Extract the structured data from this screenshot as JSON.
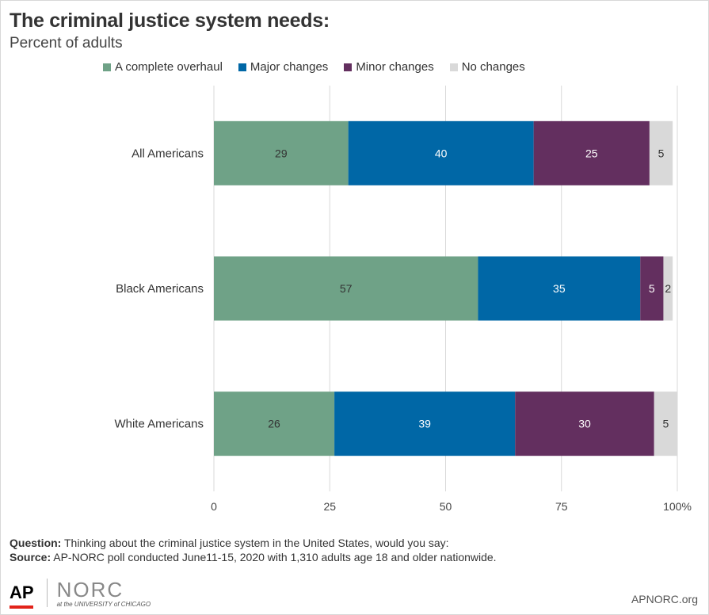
{
  "header": {
    "title": "The criminal justice system needs:",
    "subtitle": "Percent of adults"
  },
  "legend": [
    {
      "label": "A complete overhaul",
      "color": "#6fa287"
    },
    {
      "label": "Major changes",
      "color": "#0067a6"
    },
    {
      "label": "Minor changes",
      "color": "#632f5f"
    },
    {
      "label": "No changes",
      "color": "#d9d9d9"
    }
  ],
  "chart_data": {
    "type": "bar",
    "orientation": "horizontal",
    "stacked": true,
    "categories": [
      "All Americans",
      "Black Americans",
      "White Americans"
    ],
    "series": [
      {
        "name": "A complete overhaul",
        "values": [
          29,
          57,
          26
        ],
        "color": "#6fa287",
        "label_color": "#333333"
      },
      {
        "name": "Major changes",
        "values": [
          40,
          35,
          39
        ],
        "color": "#0067a6",
        "label_color": "#ffffff"
      },
      {
        "name": "Minor changes",
        "values": [
          25,
          5,
          30
        ],
        "color": "#632f5f",
        "label_color": "#ffffff"
      },
      {
        "name": "No changes",
        "values": [
          5,
          2,
          5
        ],
        "color": "#d9d9d9",
        "label_color": "#333333"
      }
    ],
    "xlim": [
      0,
      100
    ],
    "xticks": [
      "0",
      "25",
      "50",
      "75",
      "100%"
    ],
    "grid": true,
    "legend_position": "top"
  },
  "footer": {
    "question_label": "Question:",
    "question_text": " Thinking about the criminal justice system in the United States, would you say:",
    "source_label": "Source:",
    "source_text": " AP-NORC poll conducted June11-15, 2020 with 1,310 adults age 18  and older nationwide."
  },
  "logos": {
    "ap": "AP",
    "norc": "NORC",
    "norc_sub": "at the UNIVERSITY of CHICAGO"
  },
  "site": "APNORC.org"
}
